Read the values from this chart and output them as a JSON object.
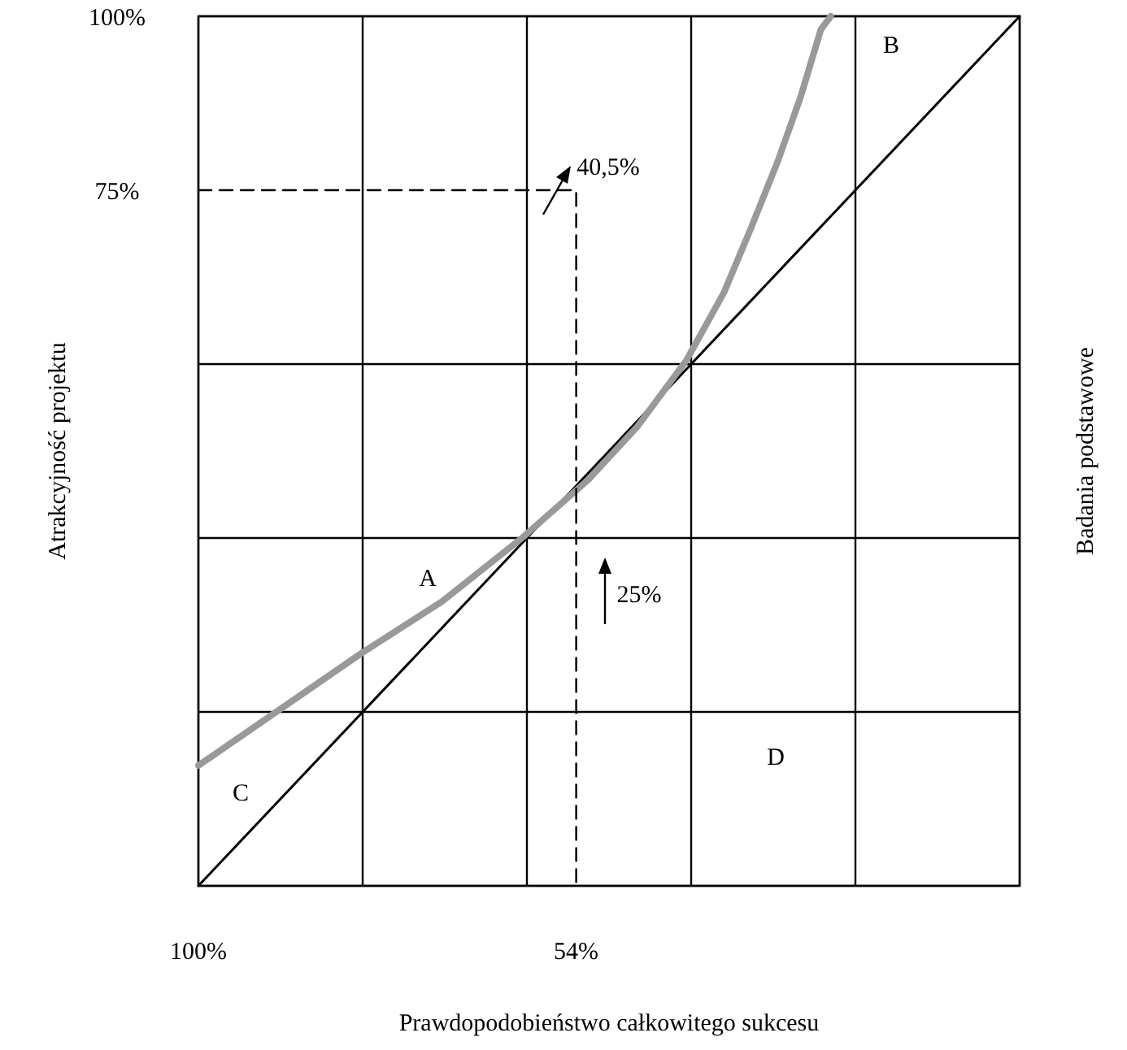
{
  "chart_data": {
    "type": "line",
    "xlabel": "Prawdopodobieństwo całkowitego sukcesu",
    "ylabel": "Atrakcyjność projektu",
    "y2label": "Badania podstawowe",
    "xlim": [
      100,
      0
    ],
    "xticks": [
      {
        "value": 100,
        "label": "100%"
      },
      {
        "value": 80,
        "label": null
      },
      {
        "value": 60,
        "label": null
      },
      {
        "value": 54,
        "label": "54%"
      },
      {
        "value": 40,
        "label": null
      },
      {
        "value": 20,
        "label": null
      },
      {
        "value": 0,
        "label": null
      }
    ],
    "ylim": [
      -25,
      100
    ],
    "yticks": [
      {
        "value": -25,
        "label": null
      },
      {
        "value": 0,
        "label": null
      },
      {
        "value": 25,
        "label": null
      },
      {
        "value": 50,
        "label": null
      },
      {
        "value": 75,
        "label": "75%"
      },
      {
        "value": 100,
        "label": "100%"
      }
    ],
    "grid": true,
    "series": [
      {
        "color": "#000000",
        "x": [
          100,
          0
        ],
        "values": [
          -25,
          100
        ]
      },
      {
        "color": "#999999",
        "x": [
          100,
          80.2,
          70.3,
          60.4,
          52.5,
          46.5,
          40.6,
          36.0,
          32.7,
          29.5,
          26.7,
          24.2,
          23.0
        ],
        "values": [
          -7.7,
          8.4,
          15.9,
          25.2,
          33.4,
          41.1,
          50.5,
          60.3,
          69.6,
          79.0,
          88.3,
          98.1,
          100
        ]
      },
      {
        "color": "#000000",
        "line_style": "dashed",
        "x": [
          100,
          54,
          54
        ],
        "values": [
          75,
          75,
          -25
        ]
      }
    ],
    "annotations": [
      "A",
      "B",
      "C",
      "D",
      "40,5%",
      "25%"
    ]
  }
}
